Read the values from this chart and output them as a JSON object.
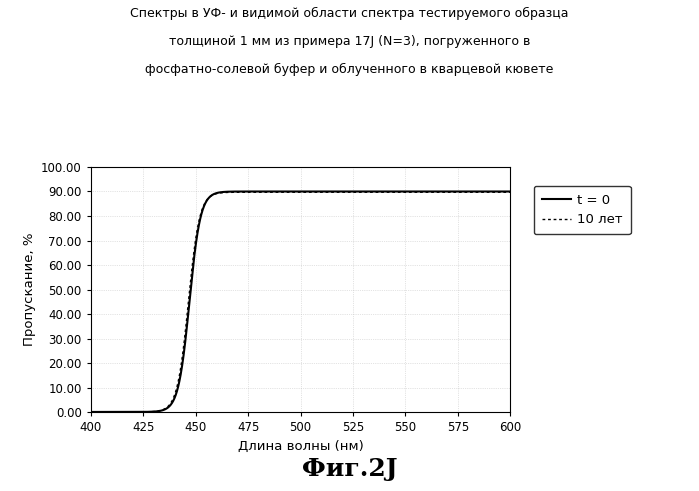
{
  "title_line1": "Спектры в УФ- и видимой области спектра тестируемого образца",
  "title_line2": "толщиной 1 мм из примера 17J (N=3), погруженного в",
  "title_line3": "фосфатно-солевой буфер и облученного в кварцевой кювете",
  "xlabel": "Длина волны (нм)",
  "ylabel": "Пропускание, %",
  "fig_label": "Фиг.2J",
  "xmin": 400,
  "xmax": 600,
  "ymin": 0.0,
  "ymax": 100.0,
  "xticks": [
    400,
    425,
    450,
    475,
    500,
    525,
    550,
    575,
    600
  ],
  "yticks": [
    0.0,
    10.0,
    20.0,
    30.0,
    40.0,
    50.0,
    60.0,
    70.0,
    80.0,
    90.0,
    100.0
  ],
  "ytick_labels": [
    "0.00",
    "10.00",
    "20.00",
    "30.00",
    "40.00",
    "50.00",
    "60.00",
    "70.00",
    "80.00",
    "90.00",
    "100.00"
  ],
  "legend_t0": "t = 0",
  "legend_10": "10 лет",
  "line_color": "#000000",
  "background_color": "#ffffff",
  "sigmoid_x0": 447.0,
  "sigmoid_k": 0.38,
  "y_max_val": 90.0,
  "y_min_val": 0.2
}
